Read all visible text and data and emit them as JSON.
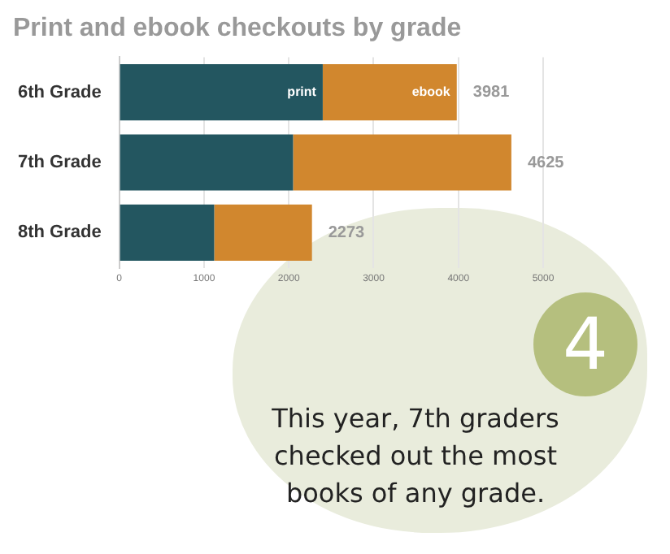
{
  "chart_data": {
    "type": "bar",
    "title": "Print and ebook checkouts by grade",
    "orientation": "horizontal",
    "stacked": true,
    "categories": [
      "6th Grade",
      "7th Grade",
      "8th Grade"
    ],
    "series": [
      {
        "name": "print",
        "color": "#235660",
        "values": [
          2400,
          2050,
          1120
        ]
      },
      {
        "name": "ebook",
        "color": "#d1872e",
        "values": [
          1581,
          2575,
          1153
        ]
      }
    ],
    "totals": [
      "3981",
      "4625",
      "2273"
    ],
    "xlim": [
      0,
      5000
    ],
    "xticks": [
      0,
      1000,
      2000,
      3000,
      4000,
      5000
    ],
    "grid": "x",
    "legend": false,
    "annotations": [
      "4",
      "This year, 7th graders checked out the most books of any grade."
    ]
  }
}
